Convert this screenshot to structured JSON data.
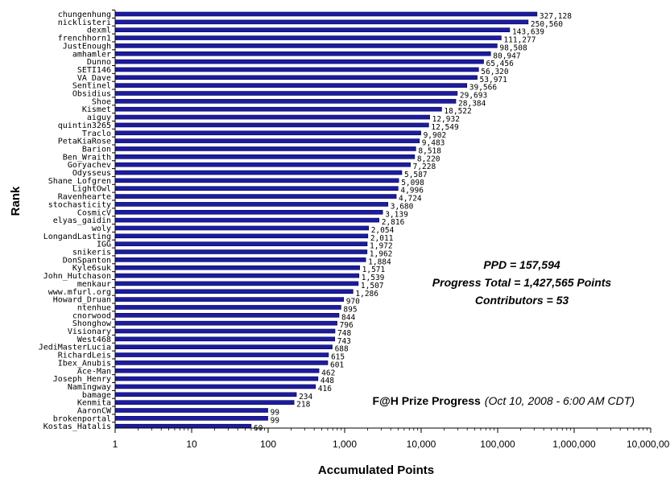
{
  "colors": {
    "bar": "#1c1c9c",
    "bar_edge": "#000066",
    "axis": "#000000",
    "background": "#ffffff"
  },
  "chart_data": {
    "type": "bar",
    "orientation": "horizontal",
    "x_scale": "log",
    "xlim": [
      1,
      10000000
    ],
    "xlabel": "Accumulated Points",
    "ylabel": "Rank",
    "x_ticks": [
      "1",
      "10",
      "100",
      "1,000",
      "10,000",
      "100,000",
      "1,000,000",
      "10,000,000"
    ],
    "grid": false,
    "categories": [
      "chungenhung",
      "nicklisteri",
      "dexml",
      "frenchhorn1",
      "JustEnough",
      "amhamler",
      "Dunno",
      "SETI146",
      "VA_Dave",
      "Sentinel",
      "Obsidius",
      "Shoe",
      "Kismet",
      "aiguy",
      "quintin3265",
      "Traclo",
      "PetaKiaRose",
      "Barion",
      "Ben_Wraith",
      "Goryachev",
      "Odysseus",
      "Shane_Lofgren",
      "LightOwl",
      "Ravenhearte",
      "stochasticity",
      "CosmicV",
      "elyas_gaidin",
      "woly",
      "LongandLasting",
      "IGG",
      "snikeris",
      "DonSpanton",
      "Kyle6suk",
      "John_Hutchason",
      "menkaur",
      "www.mfurl.org",
      "Howard_Druan",
      "ntenhue",
      "cnorwood",
      "Shonghow",
      "Visionary",
      "West468",
      "JediMasterLucia",
      "RichardLeis",
      "Ibex_Anubis",
      "Ace-Man",
      "Joseph_Henry",
      "Namingway",
      "bamage",
      "Kenmita",
      "AaronCW",
      "brokenportal",
      "Kostas_Hatalis"
    ],
    "values": [
      327128,
      250560,
      143639,
      111277,
      98508,
      80947,
      65456,
      56320,
      53971,
      39566,
      29693,
      28384,
      18522,
      12932,
      12549,
      9902,
      9483,
      8518,
      8220,
      7228,
      5587,
      5098,
      4996,
      4724,
      3680,
      3139,
      2816,
      2054,
      2011,
      1972,
      1962,
      1884,
      1571,
      1539,
      1507,
      1286,
      970,
      895,
      844,
      796,
      748,
      743,
      688,
      615,
      601,
      462,
      448,
      416,
      234,
      218,
      99,
      99,
      60
    ],
    "value_labels": [
      "327,128",
      "250,560",
      "143,639",
      "111,277",
      "98,508",
      "80,947",
      "65,456",
      "56,320",
      "53,971",
      "39,566",
      "29,693",
      "28,384",
      "18,522",
      "12,932",
      "12,549",
      "9,902",
      "9,483",
      "8,518",
      "8,220",
      "7,228",
      "5,587",
      "5,098",
      "4,996",
      "4,724",
      "3,680",
      "3,139",
      "2,816",
      "2,054",
      "2,011",
      "1,972",
      "1,962",
      "1,884",
      "1,571",
      "1,539",
      "1,507",
      "1,286",
      "970",
      "895",
      "844",
      "796",
      "748",
      "743",
      "688",
      "615",
      "601",
      "462",
      "448",
      "416",
      "234",
      "218",
      "99",
      "99",
      "60"
    ],
    "annotations": {
      "ppd": "PPD = 157,594",
      "progress_total": "Progress Total = 1,427,565 Points",
      "contributors": "Contributors = 53"
    },
    "title": "F@H Prize Progress",
    "subtitle": "(Oct 10, 2008 - 6:00 AM CDT)"
  }
}
